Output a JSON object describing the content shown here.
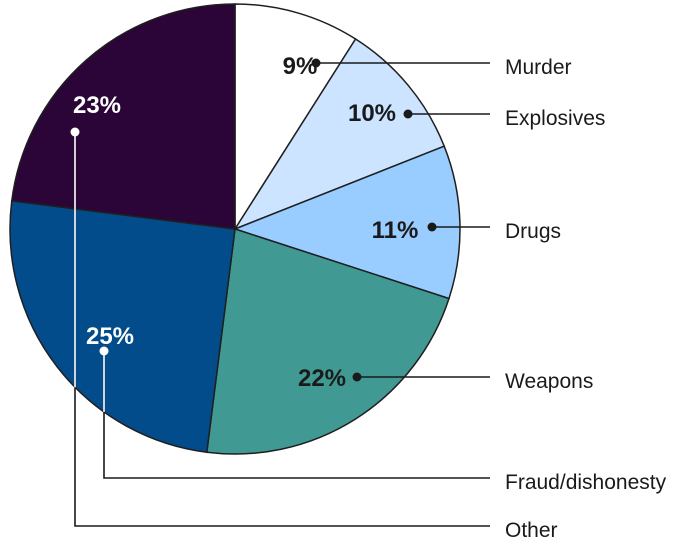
{
  "chart_data": {
    "type": "pie",
    "title": "",
    "series": [
      {
        "name": "Murder",
        "value": 9,
        "label": "9%",
        "color": "#ffffff",
        "text_color": "#1a1a1a",
        "line_color": "#1a1a1a"
      },
      {
        "name": "Explosives",
        "value": 10,
        "label": "10%",
        "color": "#cce4ff",
        "text_color": "#1a1a1a",
        "line_color": "#1a1a1a"
      },
      {
        "name": "Drugs",
        "value": 11,
        "label": "11%",
        "color": "#99ccff",
        "text_color": "#1a1a1a",
        "line_color": "#1a1a1a"
      },
      {
        "name": "Weapons",
        "value": 22,
        "label": "22%",
        "color": "#409a93",
        "text_color": "#1a1a1a",
        "line_color": "#1a1a1a"
      },
      {
        "name": "Fraud/dishonesty",
        "value": 25,
        "label": "25%",
        "color": "#034c8c",
        "text_color": "#ffffff",
        "line_color": "#1a1a1a"
      },
      {
        "name": "Other",
        "value": 23,
        "label": "23%",
        "color": "#2b0537",
        "text_color": "#ffffff",
        "line_color": "#1a1a1a"
      }
    ],
    "start": "12 o'clock",
    "direction": "clockwise",
    "legend": "right, leader lines"
  }
}
